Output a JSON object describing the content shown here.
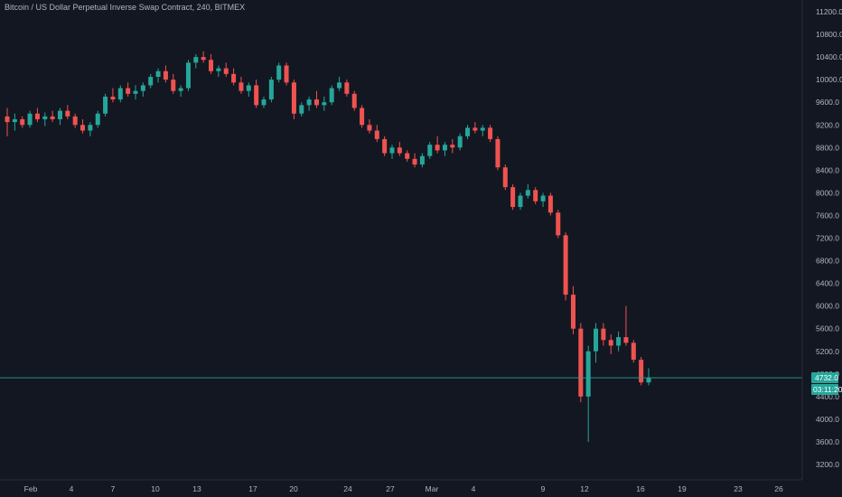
{
  "title": "Bitcoin / US Dollar Perpetual Inverse Swap Contract, 240, BITMEX",
  "price_label": "4732.0",
  "countdown": "03:11:20",
  "colors": {
    "background": "#131722",
    "up": "#26a69a",
    "down": "#ef5350",
    "axis_text": "#b2b5be",
    "price_line": "#26a69a"
  },
  "chart_data": {
    "type": "candlestick",
    "title": "Bitcoin / US Dollar Perpetual Inverse Swap Contract, 240, BITMEX",
    "ylim": [
      2900,
      11400
    ],
    "y_ticks": [
      "11200.0",
      "10800.0",
      "10400.0",
      "10000.0",
      "9600.0",
      "9200.0",
      "8800.0",
      "8400.0",
      "8000.0",
      "7600.0",
      "7200.0",
      "6800.0",
      "6400.0",
      "6000.0",
      "5600.0",
      "5200.0",
      "4800.0",
      "4400.0",
      "4000.0",
      "3600.0",
      "3200.0"
    ],
    "x_ticks": [
      "Feb",
      "4",
      "7",
      "10",
      "13",
      "17",
      "20",
      "24",
      "27",
      "Mar",
      "4",
      "9",
      "12",
      "16",
      "19",
      "23",
      "26"
    ],
    "last_price": 4732.0,
    "grid": false,
    "series": [
      {
        "values": [
          [
            9350,
            9500,
            9000,
            9250
          ],
          [
            9250,
            9400,
            9100,
            9300
          ],
          [
            9300,
            9350,
            9150,
            9200
          ],
          [
            9200,
            9450,
            9150,
            9400
          ],
          [
            9400,
            9500,
            9250,
            9300
          ],
          [
            9300,
            9420,
            9180,
            9350
          ],
          [
            9350,
            9450,
            9250,
            9300
          ],
          [
            9300,
            9500,
            9200,
            9450
          ],
          [
            9450,
            9550,
            9300,
            9350
          ],
          [
            9350,
            9400,
            9150,
            9200
          ],
          [
            9200,
            9300,
            9050,
            9100
          ],
          [
            9100,
            9250,
            9000,
            9200
          ],
          [
            9200,
            9450,
            9150,
            9400
          ],
          [
            9400,
            9750,
            9350,
            9700
          ],
          [
            9700,
            9850,
            9600,
            9650
          ],
          [
            9650,
            9900,
            9600,
            9850
          ],
          [
            9850,
            9950,
            9700,
            9750
          ],
          [
            9750,
            9900,
            9650,
            9800
          ],
          [
            9800,
            9950,
            9700,
            9900
          ],
          [
            9900,
            10100,
            9850,
            10050
          ],
          [
            10050,
            10200,
            9950,
            10150
          ],
          [
            10150,
            10250,
            9950,
            10000
          ],
          [
            10000,
            10100,
            9750,
            9800
          ],
          [
            9800,
            9900,
            9700,
            9850
          ],
          [
            9850,
            10350,
            9800,
            10300
          ],
          [
            10300,
            10450,
            10200,
            10400
          ],
          [
            10400,
            10500,
            10300,
            10350
          ],
          [
            10350,
            10450,
            10100,
            10150
          ],
          [
            10150,
            10250,
            10050,
            10200
          ],
          [
            10200,
            10300,
            10050,
            10100
          ],
          [
            10100,
            10200,
            9900,
            9950
          ],
          [
            9950,
            10050,
            9750,
            9800
          ],
          [
            9800,
            9950,
            9700,
            9900
          ],
          [
            9900,
            10000,
            9500,
            9550
          ],
          [
            9550,
            9700,
            9500,
            9650
          ],
          [
            9650,
            10050,
            9600,
            10000
          ],
          [
            10000,
            10300,
            9950,
            10250
          ],
          [
            10250,
            10300,
            9900,
            9950
          ],
          [
            9950,
            10000,
            9300,
            9400
          ],
          [
            9400,
            9600,
            9350,
            9550
          ],
          [
            9550,
            9700,
            9450,
            9650
          ],
          [
            9650,
            9800,
            9500,
            9550
          ],
          [
            9550,
            9700,
            9450,
            9600
          ],
          [
            9600,
            9900,
            9550,
            9850
          ],
          [
            9850,
            10050,
            9800,
            9950
          ],
          [
            9950,
            10000,
            9700,
            9750
          ],
          [
            9750,
            9800,
            9450,
            9500
          ],
          [
            9500,
            9550,
            9150,
            9200
          ],
          [
            9200,
            9300,
            9050,
            9100
          ],
          [
            9100,
            9200,
            8900,
            8950
          ],
          [
            8950,
            9000,
            8650,
            8700
          ],
          [
            8700,
            8850,
            8600,
            8800
          ],
          [
            8800,
            8900,
            8650,
            8700
          ],
          [
            8700,
            8750,
            8550,
            8600
          ],
          [
            8600,
            8700,
            8450,
            8500
          ],
          [
            8500,
            8700,
            8450,
            8650
          ],
          [
            8650,
            8900,
            8600,
            8850
          ],
          [
            8850,
            9000,
            8700,
            8750
          ],
          [
            8750,
            8900,
            8650,
            8850
          ],
          [
            8850,
            8950,
            8700,
            8800
          ],
          [
            8800,
            9050,
            8750,
            9000
          ],
          [
            9000,
            9200,
            8950,
            9150
          ],
          [
            9150,
            9250,
            9050,
            9100
          ],
          [
            9100,
            9200,
            9000,
            9150
          ],
          [
            9150,
            9200,
            8900,
            8950
          ],
          [
            8950,
            9000,
            8400,
            8450
          ],
          [
            8450,
            8500,
            8050,
            8100
          ],
          [
            8100,
            8150,
            7700,
            7750
          ],
          [
            7750,
            8000,
            7700,
            7950
          ],
          [
            7950,
            8150,
            7900,
            8050
          ],
          [
            8050,
            8100,
            7800,
            7850
          ],
          [
            7850,
            8000,
            7750,
            7950
          ],
          [
            7950,
            8000,
            7600,
            7650
          ],
          [
            7650,
            7700,
            7200,
            7250
          ],
          [
            7250,
            7300,
            6100,
            6200
          ],
          [
            6200,
            6350,
            5500,
            5600
          ],
          [
            5600,
            5700,
            4300,
            4400
          ],
          [
            4400,
            5300,
            3600,
            5200
          ],
          [
            5200,
            5700,
            5000,
            5600
          ],
          [
            5600,
            5700,
            5300,
            5400
          ],
          [
            5400,
            5500,
            5150,
            5300
          ],
          [
            5300,
            5550,
            5200,
            5450
          ],
          [
            5450,
            6000,
            5300,
            5350
          ],
          [
            5350,
            5400,
            5000,
            5050
          ],
          [
            5050,
            5100,
            4600,
            4650
          ],
          [
            4650,
            4900,
            4600,
            4732
          ]
        ]
      }
    ]
  }
}
